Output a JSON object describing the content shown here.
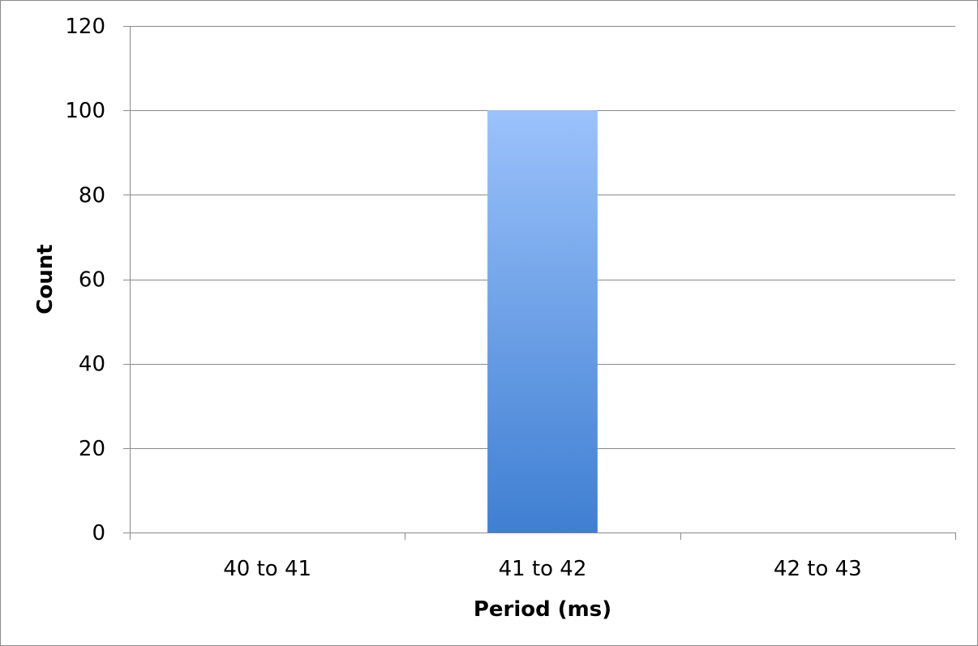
{
  "chart_data": {
    "type": "bar",
    "title": "",
    "xlabel": "Period (ms)",
    "ylabel": "Count",
    "categories": [
      "40 to 41",
      "41 to 42",
      "42 to 43"
    ],
    "values": [
      0,
      100,
      0
    ],
    "ylim": [
      0,
      120
    ],
    "yticks": [
      "0",
      "20",
      "40",
      "60",
      "80",
      "100",
      "120"
    ],
    "grid": true,
    "legend": "none",
    "bar_color_top": "#9bc2fb",
    "bar_color_bottom": "#3f7fd2",
    "gridline_color": "#8a8a8a"
  }
}
